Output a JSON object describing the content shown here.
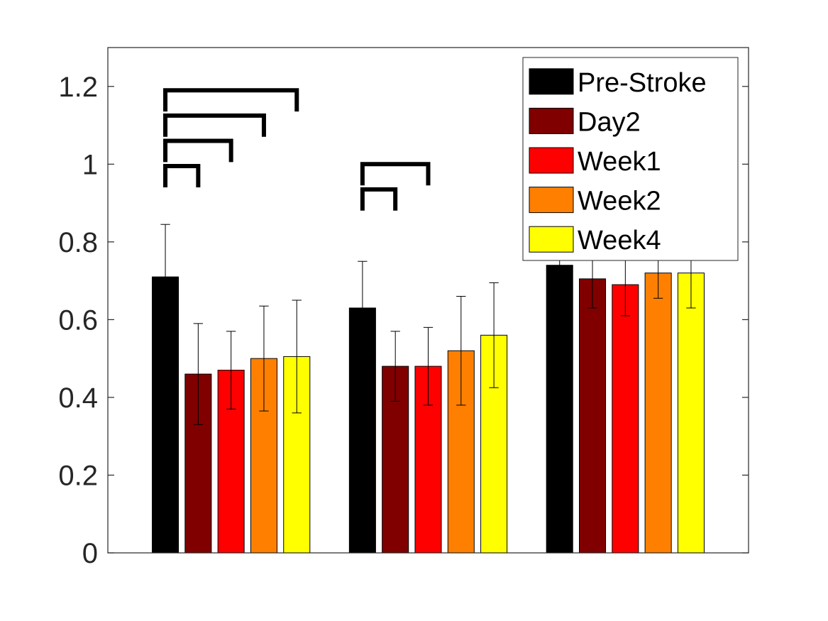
{
  "chart_data": {
    "type": "bar",
    "title": "",
    "xlabel": "",
    "ylabel": "",
    "ylim": [
      0,
      1.3
    ],
    "yticks": [
      0,
      0.2,
      0.4,
      0.6,
      0.8,
      1,
      1.2
    ],
    "yticklabels": [
      "0",
      "0.2",
      "0.4",
      "0.6",
      "0.8",
      "1",
      "1.2"
    ],
    "groups": 3,
    "grid": false,
    "legend_position": "top-right",
    "series": [
      {
        "name": "Pre-Stroke",
        "color": "#000000",
        "values": [
          0.71,
          0.63,
          0.74
        ],
        "errors": [
          0.135,
          0.12,
          0.11
        ]
      },
      {
        "name": "Day2",
        "color": "#800000",
        "values": [
          0.46,
          0.48,
          0.705
        ],
        "errors": [
          0.13,
          0.09,
          0.075
        ]
      },
      {
        "name": "Week1",
        "color": "#ff0000",
        "values": [
          0.47,
          0.48,
          0.69
        ],
        "errors": [
          0.1,
          0.1,
          0.08
        ]
      },
      {
        "name": "Week2",
        "color": "#ff8000",
        "values": [
          0.5,
          0.52,
          0.72
        ],
        "errors": [
          0.135,
          0.14,
          0.065
        ]
      },
      {
        "name": "Week4",
        "color": "#ffff00",
        "values": [
          0.505,
          0.56,
          0.72
        ],
        "errors": [
          0.145,
          0.135,
          0.09
        ]
      }
    ],
    "significance": [
      {
        "group": 0,
        "from": 0,
        "to": 1,
        "level": 0.995
      },
      {
        "group": 0,
        "from": 0,
        "to": 2,
        "level": 1.06
      },
      {
        "group": 0,
        "from": 0,
        "to": 3,
        "level": 1.125
      },
      {
        "group": 0,
        "from": 0,
        "to": 4,
        "level": 1.19
      },
      {
        "group": 1,
        "from": 0,
        "to": 1,
        "level": 0.935
      },
      {
        "group": 1,
        "from": 0,
        "to": 2,
        "level": 1.0
      }
    ]
  }
}
